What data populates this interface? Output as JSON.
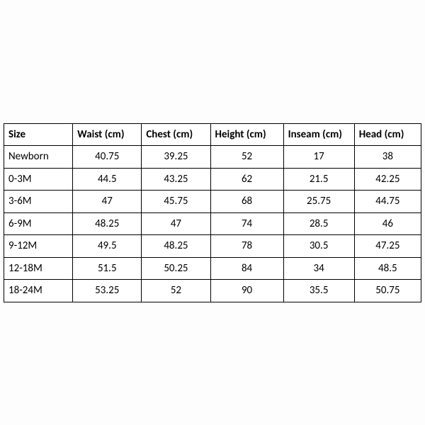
{
  "size_chart": {
    "type": "table",
    "background_color": "#ffffff",
    "border_color": "#000000",
    "text_color": "#000000",
    "header_font_weight": 700,
    "cell_fontsize": 15,
    "columns": [
      {
        "label": "Size",
        "align": "left"
      },
      {
        "label": "Waist (cm)",
        "align": "left"
      },
      {
        "label": "Chest (cm)",
        "align": "left"
      },
      {
        "label": "Height (cm)",
        "align": "left"
      },
      {
        "label": "Inseam (cm)",
        "align": "left"
      },
      {
        "label": "Head (cm)",
        "align": "left"
      }
    ],
    "rows": [
      [
        "Newborn",
        "40.75",
        "39.25",
        "52",
        "17",
        "38"
      ],
      [
        "0-3M",
        "44.5",
        "43.25",
        "62",
        "21.5",
        "42.25"
      ],
      [
        "3-6M",
        "47",
        "45.75",
        "68",
        "25.75",
        "44.75"
      ],
      [
        "6-9M",
        "48.25",
        "47",
        "74",
        "28.5",
        "46"
      ],
      [
        "9-12M",
        "49.5",
        "48.25",
        "78",
        "30.5",
        "47.25"
      ],
      [
        "12-18M",
        "51.5",
        "50.25",
        "84",
        "34",
        "48.5"
      ],
      [
        "18-24M",
        "53.25",
        "52",
        "90",
        "35.5",
        "50.75"
      ]
    ]
  }
}
